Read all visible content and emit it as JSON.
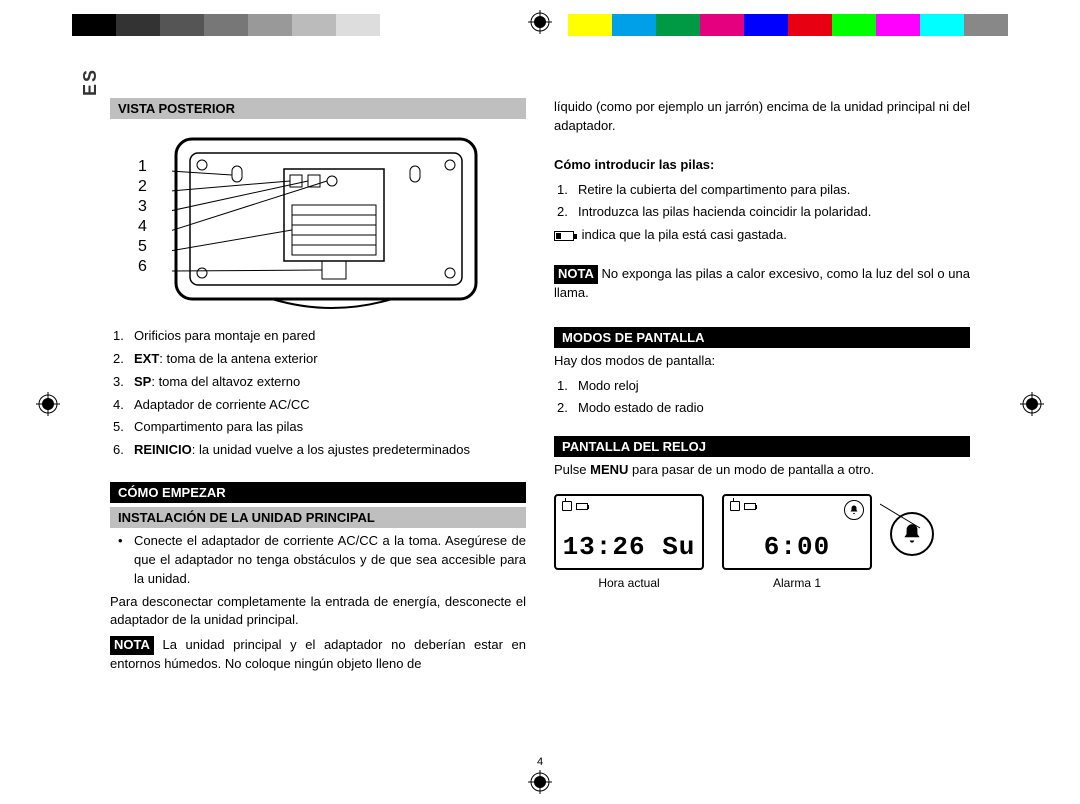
{
  "print_marks": {
    "color_bar_colors": [
      "#000000",
      "#333333",
      "#555555",
      "#777777",
      "#999999",
      "#bbbbbb",
      "#dddddd",
      "#ffffff",
      "#ffff00",
      "#00a0e9",
      "#009944",
      "#e4007f",
      "#0000ff",
      "#e60012",
      "#00ff00",
      "#ff00ff",
      "#00ffff",
      "#888888"
    ],
    "segment_widths": [
      44,
      44,
      44,
      44,
      44,
      44,
      44,
      44,
      44,
      44,
      44,
      44,
      44,
      44,
      44,
      44,
      44,
      44
    ]
  },
  "side_tab": "ES",
  "page_number": "4",
  "left": {
    "heading_rear": "VISTA POSTERIOR",
    "rear_numbers": [
      "1",
      "2",
      "3",
      "4",
      "5",
      "6"
    ],
    "rear_list": [
      {
        "pre": "",
        "bold": "",
        "text": "Orificios para montaje en pared"
      },
      {
        "pre": "",
        "bold": "EXT",
        "text": ": toma de la antena exterior"
      },
      {
        "pre": "",
        "bold": "SP",
        "text": ": toma del altavoz externo"
      },
      {
        "pre": "",
        "bold": "",
        "text": "Adaptador de corriente AC/CC"
      },
      {
        "pre": "",
        "bold": "",
        "text": "Compartimento para las pilas"
      },
      {
        "pre": "",
        "bold": "REINICIO",
        "text": ": la unidad vuelve a los ajustes predeterminados"
      }
    ],
    "heading_start": "CÓMO EMPEZAR",
    "heading_install": "INSTALACIÓN DE LA UNIDAD PRINCIPAL",
    "install_bullet": "Conecte el adaptador de corriente AC/CC a la toma. Asegúrese de que el adaptador no tenga obstáculos y de que sea accesible para la unidad.",
    "disconnect_para": "Para desconectar completamente la entrada de energía, desconecte el adaptador de la unidad principal.",
    "nota_label": "NOTA",
    "nota1": " La unidad principal y el adaptador no deberían estar en entornos húmedos. No coloque ningún objeto lleno de"
  },
  "right": {
    "top_continuation": "líquido (como por ejemplo un jarrón) encima de la unidad principal ni del adaptador.",
    "batt_heading": "Cómo introducir las pilas:",
    "batt_steps": [
      "Retire la cubierta del compartimento para pilas.",
      "Introduzca las pilas hacienda coincidir la polaridad."
    ],
    "batt_low": " indica que la pila está casi gastada.",
    "nota_label": "NOTA",
    "nota2": " No exponga las pilas a calor excesivo, como la luz del sol o una llama.",
    "heading_modes": "MODOS DE PANTALLA",
    "modes_intro": "Hay dos modos de pantalla:",
    "modes_list": [
      "Modo reloj",
      "Modo estado de radio"
    ],
    "heading_clock": "PANTALLA DEL RELOJ",
    "clock_para_pre": "Pulse ",
    "clock_para_bold": "MENU",
    "clock_para_post": " para pasar de un modo de pantalla a otro.",
    "lcd1_time": "13:26 Su",
    "lcd1_caption": "Hora actual",
    "lcd2_time": "6:00",
    "lcd2_caption": "Alarma 1"
  }
}
